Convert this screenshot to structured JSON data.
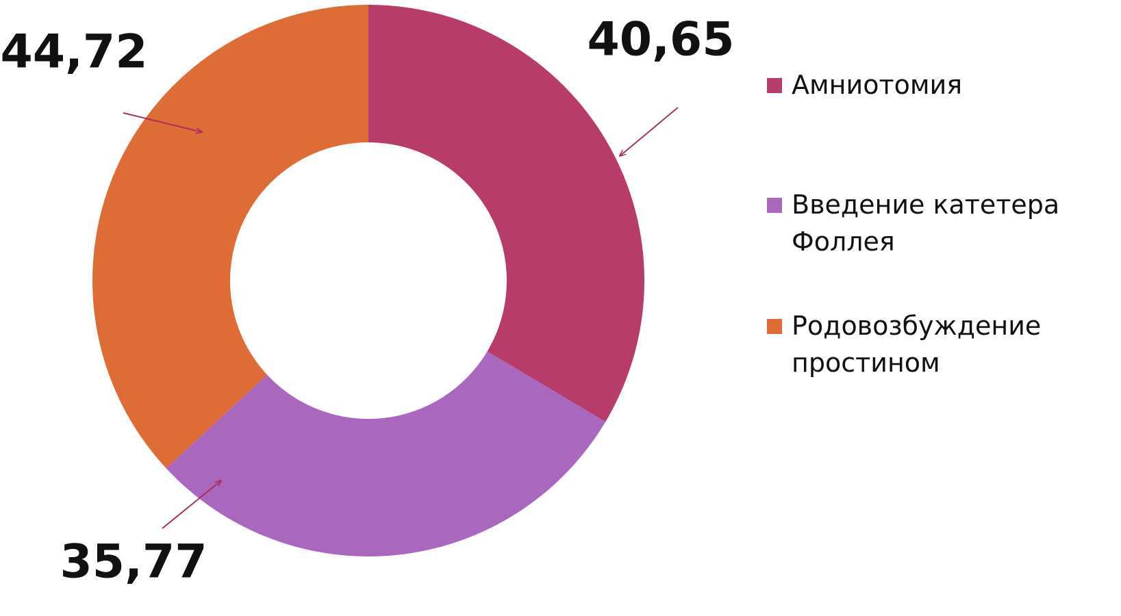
{
  "chart_data": {
    "type": "pie",
    "donut": true,
    "categories": [
      "Амниотомия",
      "Введение катетера Фоллея",
      "Родовозбуждение простином"
    ],
    "values": [
      40.65,
      35.77,
      44.72
    ],
    "value_labels": [
      "40,65",
      "35,77",
      "44,72"
    ],
    "colors": [
      "#b83c69",
      "#a968bd",
      "#dd6c36"
    ]
  }
}
